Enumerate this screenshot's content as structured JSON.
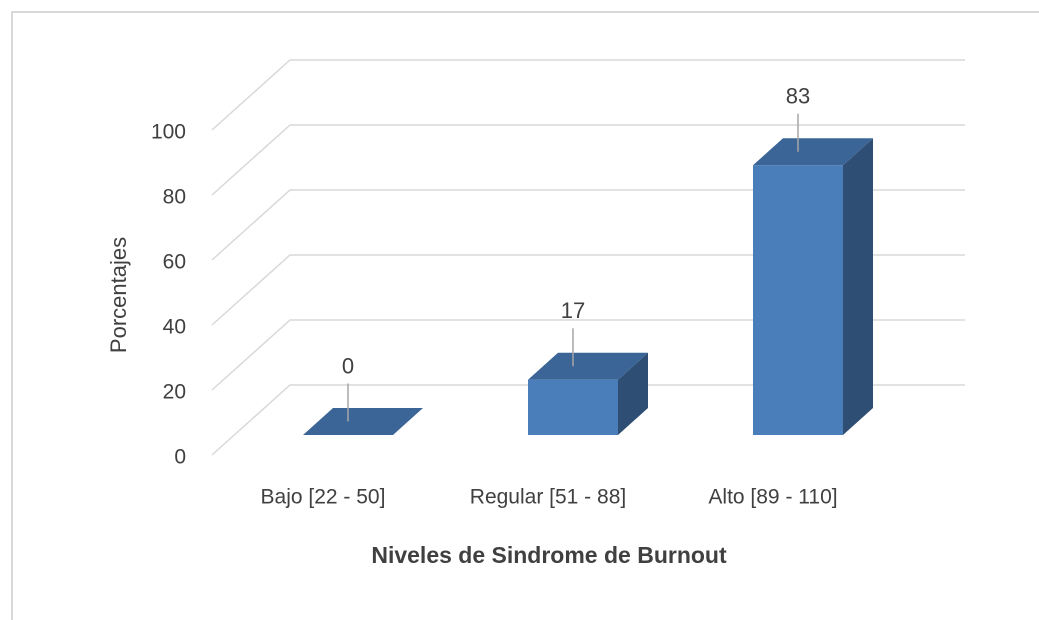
{
  "chart_data": {
    "type": "bar3d",
    "categories": [
      "Bajo [22 - 50]",
      "Regular [51 - 88]",
      "Alto [89 - 110]"
    ],
    "values": [
      0,
      17,
      83
    ],
    "color": "#4a7ebb",
    "ylim": [
      0,
      100
    ],
    "yticks": [
      0,
      20,
      40,
      60,
      80,
      100
    ],
    "grid": true,
    "x_label": "Niveles de Sindrome de Burnout",
    "y_label": "Porcentajes"
  }
}
